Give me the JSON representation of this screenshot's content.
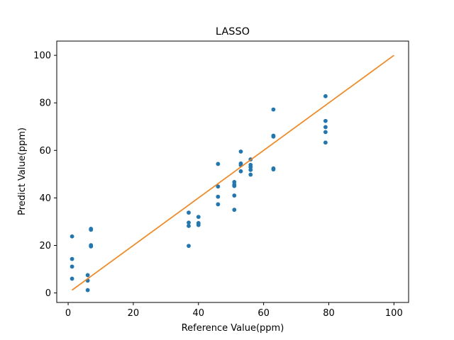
{
  "chart_data": {
    "type": "scatter",
    "title": "LASSO",
    "xlabel": "Reference Value(ppm)",
    "ylabel": "Predict Value(ppm)",
    "xlim": [
      -3.5,
      104.5
    ],
    "ylim": [
      -4,
      106
    ],
    "xticks": [
      0,
      20,
      40,
      60,
      80,
      100
    ],
    "yticks": [
      0,
      20,
      40,
      60,
      80,
      100
    ],
    "grid": false,
    "series": [
      {
        "kind": "scatter",
        "color": "#1f77b4",
        "points": [
          [
            1.2,
            23.8
          ],
          [
            1.2,
            14.3
          ],
          [
            1.2,
            11.1
          ],
          [
            1.2,
            6.0
          ],
          [
            6.0,
            7.5
          ],
          [
            6.0,
            5.2
          ],
          [
            6.0,
            1.2
          ],
          [
            7.0,
            27.0
          ],
          [
            7.0,
            26.6
          ],
          [
            7.0,
            20.1
          ],
          [
            7.0,
            19.6
          ],
          [
            37.0,
            33.8
          ],
          [
            37.0,
            29.6
          ],
          [
            37.0,
            28.2
          ],
          [
            37.0,
            19.8
          ],
          [
            40.0,
            32.0
          ],
          [
            40.0,
            29.4
          ],
          [
            40.0,
            28.6
          ],
          [
            46.0,
            54.3
          ],
          [
            46.0,
            44.8
          ],
          [
            46.0,
            40.5
          ],
          [
            46.0,
            37.3
          ],
          [
            51.0,
            46.7
          ],
          [
            51.0,
            45.6
          ],
          [
            51.0,
            45.0
          ],
          [
            51.0,
            41.0
          ],
          [
            51.0,
            35.0
          ],
          [
            53.0,
            59.5
          ],
          [
            53.0,
            54.5
          ],
          [
            53.0,
            53.8
          ],
          [
            53.0,
            51.2
          ],
          [
            56.0,
            56.2
          ],
          [
            56.0,
            53.9
          ],
          [
            56.0,
            53.0
          ],
          [
            56.0,
            51.8
          ],
          [
            56.0,
            49.8
          ],
          [
            63.0,
            77.2
          ],
          [
            63.0,
            66.2
          ],
          [
            63.0,
            65.8
          ],
          [
            63.0,
            52.4
          ],
          [
            63.0,
            52.0
          ],
          [
            79.0,
            82.8
          ],
          [
            79.0,
            72.4
          ],
          [
            79.0,
            69.8
          ],
          [
            79.0,
            67.7
          ],
          [
            79.0,
            63.3
          ]
        ]
      },
      {
        "kind": "line",
        "color": "#ff7f0e",
        "points": [
          [
            1.2,
            1.2
          ],
          [
            100,
            100
          ]
        ]
      }
    ]
  }
}
